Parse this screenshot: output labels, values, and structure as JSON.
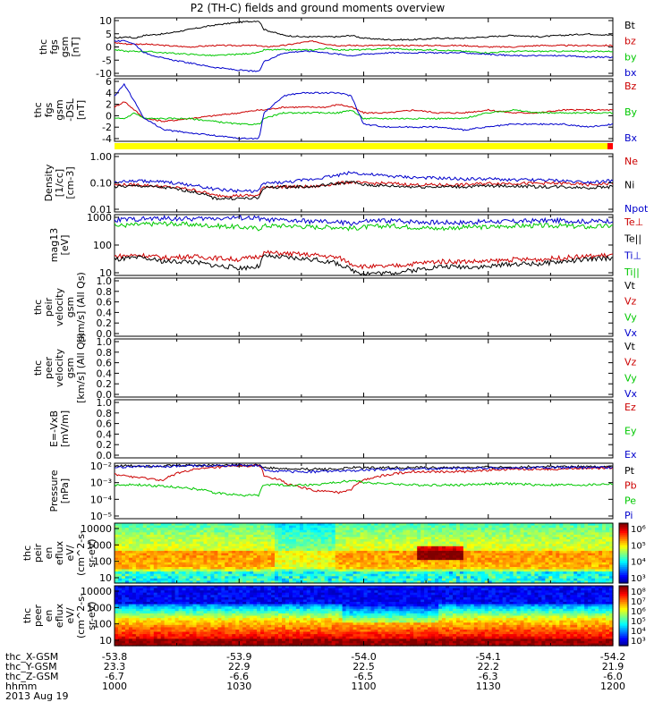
{
  "title": "P2 (TH-C) fields and ground moments overview",
  "chart_data": [
    {
      "type": "line",
      "panel": "fgs",
      "ylabel": [
        "thc",
        "fgs",
        "gsm",
        "[nT]"
      ],
      "yticks": [
        "10",
        "5",
        "0",
        "-5",
        "-10"
      ],
      "ylim": [
        -10,
        10
      ],
      "x": [
        1000,
        1005,
        1008,
        1012,
        1020,
        1030,
        1040,
        1050,
        1058,
        1060,
        1068,
        1075,
        1080,
        1085,
        1090,
        1095,
        1100,
        1110,
        1120,
        1130,
        1140,
        1150,
        1160,
        1170,
        1180,
        1190,
        1200
      ],
      "series": [
        {
          "name": "Bt",
          "color": "#000000",
          "values": [
            3,
            3.5,
            3,
            4,
            4.5,
            6,
            7.5,
            8.5,
            9,
            6,
            4,
            3.5,
            3.5,
            3.5,
            3.5,
            4,
            3,
            2.5,
            2.5,
            3,
            3,
            3.5,
            4,
            3.5,
            4,
            4.5,
            4
          ]
        },
        {
          "name": "bz",
          "color": "#cc0000",
          "values": [
            1.5,
            1,
            1,
            1,
            0.5,
            0,
            0.5,
            0.5,
            0.5,
            0,
            0.5,
            1.5,
            2,
            1,
            0.5,
            0.5,
            0.5,
            0.5,
            0.5,
            0.5,
            0.5,
            0,
            0,
            0.5,
            0.5,
            0.5,
            0.5
          ]
        },
        {
          "name": "by",
          "color": "#00c800",
          "values": [
            -1,
            -1.5,
            -1.5,
            -1.5,
            -2,
            -2.5,
            -3,
            -2.5,
            -2,
            -1,
            -1,
            -1,
            -1,
            -0.5,
            -1,
            -1,
            -1,
            -0.5,
            -1,
            -1,
            -1.5,
            -2,
            -1.5,
            -1.5,
            -1.5,
            -1.5,
            -1.5
          ]
        },
        {
          "name": "bx",
          "color": "#0000cc",
          "values": [
            2,
            2,
            1,
            -2,
            -4,
            -5.5,
            -7,
            -8,
            -8.5,
            -5,
            -2,
            -1.5,
            -1.5,
            -2,
            -2.5,
            -3,
            -2.5,
            -2,
            -2,
            -2,
            -2,
            -2.5,
            -3,
            -3,
            -3,
            -3.5,
            -3.5
          ]
        }
      ]
    },
    {
      "type": "line",
      "panel": "fgs-dsl",
      "ylabel": [
        "thc",
        "fgs",
        "gsm",
        "-DSL",
        "[nT]"
      ],
      "yticks": [
        "6",
        "4",
        "2",
        "0",
        "-2",
        "-4"
      ],
      "ylim": [
        -5,
        6
      ],
      "x": [
        1000,
        1004,
        1008,
        1012,
        1020,
        1030,
        1040,
        1050,
        1058,
        1060,
        1068,
        1075,
        1080,
        1085,
        1090,
        1095,
        1100,
        1110,
        1120,
        1130,
        1140,
        1150,
        1160,
        1170,
        1180,
        1190,
        1200
      ],
      "series": [
        {
          "name": "Bz",
          "color": "#cc0000",
          "values": [
            1,
            2,
            0.5,
            -1,
            -1.5,
            -1,
            -0.5,
            0,
            0.5,
            0.5,
            1,
            1,
            1,
            1,
            1.5,
            1,
            0,
            0,
            0.5,
            0,
            0,
            0.5,
            0,
            0,
            0.5,
            0.5,
            0.5
          ]
        },
        {
          "name": "By",
          "color": "#00c800",
          "values": [
            -1,
            -1,
            0,
            -1,
            -1,
            -1,
            -1.5,
            -2,
            -2,
            -1,
            0,
            0,
            0,
            0,
            0,
            0.5,
            -1,
            -1,
            -1,
            -1,
            -1,
            0,
            0.5,
            0,
            0,
            0,
            0
          ]
        },
        {
          "name": "Bx",
          "color": "#0000cc",
          "values": [
            3,
            5,
            2,
            -1,
            -3,
            -3.5,
            -4,
            -4.5,
            -4.5,
            0,
            3,
            3.5,
            3.5,
            3.5,
            3.5,
            3,
            -2,
            -2.5,
            -2.5,
            -2.5,
            -3,
            -2.5,
            -2,
            -2,
            -2,
            -2.5,
            -2
          ]
        }
      ]
    },
    {
      "type": "line",
      "panel": "density",
      "scale": "log",
      "ylabel": [
        "Density",
        "[1/cc]",
        "[cm-3]"
      ],
      "yticks": [
        "1.00",
        "0.10",
        "0.01"
      ],
      "ylim": [
        0.01,
        10
      ],
      "x": [
        1000,
        1010,
        1020,
        1030,
        1040,
        1050,
        1058,
        1060,
        1070,
        1080,
        1090,
        1095,
        1100,
        1110,
        1120,
        1130,
        1140,
        1150,
        1160,
        1170,
        1180,
        1190,
        1200
      ],
      "series": [
        {
          "name": "Ne",
          "color": "#cc0000",
          "values": [
            0.25,
            0.25,
            0.2,
            0.15,
            0.07,
            0.07,
            0.07,
            0.2,
            0.2,
            0.2,
            0.3,
            0.35,
            0.3,
            0.3,
            0.25,
            0.25,
            0.25,
            0.3,
            0.3,
            0.3,
            0.3,
            0.25,
            0.3
          ]
        },
        {
          "name": "Ni",
          "color": "#000000",
          "values": [
            0.2,
            0.22,
            0.18,
            0.12,
            0.05,
            0.05,
            0.05,
            0.18,
            0.2,
            0.2,
            0.3,
            0.35,
            0.25,
            0.22,
            0.2,
            0.2,
            0.2,
            0.22,
            0.22,
            0.2,
            0.2,
            0.18,
            0.2
          ]
        },
        {
          "name": "Npot",
          "color": "#0000cc",
          "values": [
            0.35,
            0.4,
            0.35,
            0.25,
            0.15,
            0.12,
            0.12,
            0.3,
            0.35,
            0.5,
            0.8,
            1.1,
            0.9,
            0.7,
            0.6,
            0.55,
            0.5,
            0.5,
            0.45,
            0.45,
            0.4,
            0.35,
            0.4
          ]
        }
      ]
    },
    {
      "type": "line",
      "panel": "temperature",
      "scale": "log",
      "ylabel": [
        "mag13",
        "[eV]"
      ],
      "yticks": [
        "1000",
        "100",
        "10"
      ],
      "ylim": [
        10,
        1200
      ],
      "x": [
        1000,
        1010,
        1020,
        1030,
        1040,
        1050,
        1058,
        1060,
        1070,
        1080,
        1090,
        1095,
        1100,
        1110,
        1120,
        1130,
        1140,
        1150,
        1160,
        1170,
        1180,
        1190,
        1200
      ],
      "series": [
        {
          "name": "Te⊥",
          "color": "#cc0000",
          "values": [
            45,
            50,
            40,
            45,
            40,
            35,
            45,
            60,
            55,
            50,
            40,
            25,
            20,
            20,
            25,
            30,
            30,
            30,
            35,
            35,
            40,
            45,
            50
          ]
        },
        {
          "name": "Te||",
          "color": "#000000",
          "values": [
            35,
            40,
            30,
            30,
            22,
            18,
            20,
            45,
            40,
            35,
            25,
            15,
            12,
            12,
            15,
            20,
            20,
            20,
            25,
            25,
            30,
            35,
            40
          ]
        },
        {
          "name": "Ti⊥",
          "color": "#0000cc",
          "values": [
            800,
            850,
            900,
            850,
            900,
            950,
            900,
            800,
            750,
            700,
            650,
            600,
            700,
            750,
            700,
            650,
            650,
            700,
            700,
            750,
            750,
            700,
            750
          ]
        },
        {
          "name": "Ti||",
          "color": "#00c800",
          "values": [
            500,
            550,
            600,
            550,
            500,
            450,
            400,
            500,
            500,
            450,
            450,
            400,
            450,
            500,
            450,
            400,
            450,
            450,
            500,
            500,
            500,
            450,
            500
          ]
        }
      ]
    },
    {
      "type": "line",
      "panel": "peir-velocity",
      "ylabel": [
        "thc",
        "peir",
        "velocity",
        "gsm",
        "[km/s] (All Qs)"
      ],
      "yticks": [
        "1.0",
        "0.8",
        "0.6",
        "0.4",
        "0.2",
        "0.0"
      ],
      "ylim": [
        0,
        1
      ],
      "series": [
        {
          "name": "Vt",
          "color": "#000000",
          "values": []
        },
        {
          "name": "Vz",
          "color": "#cc0000",
          "values": []
        },
        {
          "name": "Vy",
          "color": "#00c800",
          "values": []
        },
        {
          "name": "Vx",
          "color": "#0000cc",
          "values": []
        }
      ]
    },
    {
      "type": "line",
      "panel": "peer-velocity",
      "ylabel": [
        "thc",
        "peer",
        "velocity",
        "gsm",
        "[km/s] (All Qs)"
      ],
      "yticks": [
        "1.0",
        "0.8",
        "0.6",
        "0.4",
        "0.2",
        "0.0"
      ],
      "ylim": [
        0,
        1
      ],
      "series": [
        {
          "name": "Vt",
          "color": "#000000",
          "values": []
        },
        {
          "name": "Vz",
          "color": "#cc0000",
          "values": []
        },
        {
          "name": "Vy",
          "color": "#00c800",
          "values": []
        },
        {
          "name": "Vx",
          "color": "#0000cc",
          "values": []
        }
      ]
    },
    {
      "type": "line",
      "panel": "efield",
      "ylabel": [
        "E=-VxB",
        "[mV/m]"
      ],
      "yticks": [
        "1.0",
        "0.8",
        "0.6",
        "0.4",
        "0.2",
        "0.0"
      ],
      "ylim": [
        0,
        1
      ],
      "series": [
        {
          "name": "Ez",
          "color": "#cc0000",
          "values": []
        },
        {
          "name": "Ey",
          "color": "#00c800",
          "values": []
        },
        {
          "name": "Ex",
          "color": "#0000cc",
          "values": []
        }
      ]
    },
    {
      "type": "line",
      "panel": "pressure",
      "scale": "log",
      "ylabel": [
        "Pressure",
        "[nPa]"
      ],
      "yticks": [
        "10⁻²",
        "10⁻³",
        "10⁻⁴",
        "10⁻⁵"
      ],
      "ylim": [
        5e-06,
        0.03
      ],
      "x": [
        1000,
        1010,
        1020,
        1030,
        1040,
        1050,
        1058,
        1060,
        1070,
        1080,
        1090,
        1095,
        1100,
        1110,
        1120,
        1130,
        1140,
        1150,
        1160,
        1170,
        1180,
        1190,
        1200
      ],
      "series": [
        {
          "name": "Pt",
          "color": "#000000",
          "values": [
            0.02,
            0.02,
            0.02,
            0.022,
            0.022,
            0.022,
            0.022,
            0.015,
            0.012,
            0.012,
            0.012,
            0.015,
            0.015,
            0.015,
            0.015,
            0.015,
            0.015,
            0.016,
            0.016,
            0.018,
            0.018,
            0.018,
            0.018
          ]
        },
        {
          "name": "Pb",
          "color": "#cc0000",
          "values": [
            0.005,
            0.003,
            0.002,
            0.01,
            0.015,
            0.02,
            0.02,
            0.004,
            0.001,
            0.0004,
            0.0003,
            0.0005,
            0.002,
            0.005,
            0.008,
            0.008,
            0.008,
            0.01,
            0.012,
            0.012,
            0.012,
            0.014,
            0.014
          ]
        },
        {
          "name": "Pe",
          "color": "#00c800",
          "values": [
            0.001,
            0.001,
            0.0008,
            0.0006,
            0.0003,
            0.0002,
            0.0002,
            0.001,
            0.001,
            0.001,
            0.0015,
            0.002,
            0.0015,
            0.0012,
            0.001,
            0.001,
            0.001,
            0.0012,
            0.0012,
            0.001,
            0.001,
            0.001,
            0.0012
          ]
        },
        {
          "name": "Pi",
          "color": "#0000cc",
          "values": [
            0.015,
            0.018,
            0.018,
            0.02,
            0.02,
            0.022,
            0.02,
            0.01,
            0.008,
            0.008,
            0.009,
            0.009,
            0.01,
            0.012,
            0.012,
            0.013,
            0.013,
            0.014,
            0.014,
            0.015,
            0.015,
            0.015,
            0.016
          ]
        }
      ]
    },
    {
      "type": "heatmap",
      "panel": "peir-eflux",
      "ylabel": [
        "thc",
        "peir",
        "en",
        "eflux",
        "eV/",
        "(cm^2-s-",
        "sr-eV)"
      ],
      "yticks": [
        "10000",
        "1000",
        "100",
        "10"
      ],
      "colorbar_ticks": [
        "10⁶",
        "10⁵",
        "10⁴",
        "10³"
      ]
    },
    {
      "type": "heatmap",
      "panel": "peer-eflux",
      "ylabel": [
        "thc",
        "peer",
        "en",
        "eflux",
        "eV/",
        "(cm^2-s-",
        "sr-eV)"
      ],
      "yticks": [
        "10000",
        "1000",
        "100",
        "10"
      ],
      "colorbar_ticks": [
        "10⁸",
        "10⁷",
        "10⁶",
        "10⁵",
        "10⁴",
        "10³"
      ]
    }
  ],
  "xaxis": {
    "rows": [
      {
        "label": "thc_X-GSM",
        "values": [
          "-53.8",
          "-53.9",
          "-54.0",
          "-54.1",
          "-54.2"
        ]
      },
      {
        "label": "thc_Y-GSM",
        "values": [
          "23.3",
          "22.9",
          "22.5",
          "22.2",
          "21.9"
        ]
      },
      {
        "label": "thc_Z-GSM",
        "values": [
          "-6.7",
          "-6.6",
          "-6.5",
          "-6.3",
          "-6.0"
        ]
      },
      {
        "label": "hhmm",
        "values": [
          "1000",
          "1030",
          "1100",
          "1130",
          "1200"
        ]
      }
    ],
    "date": "2013 Aug 19"
  }
}
